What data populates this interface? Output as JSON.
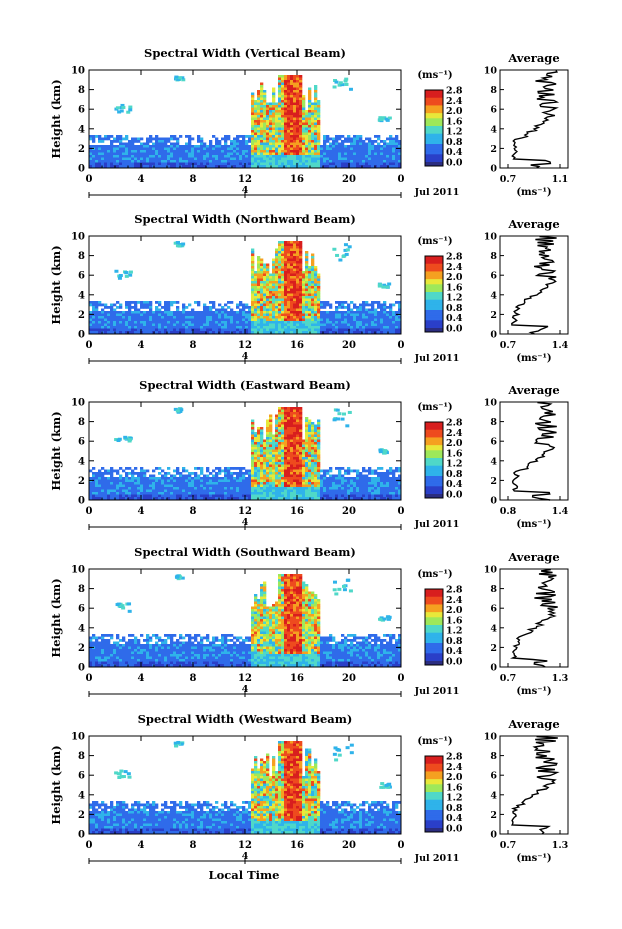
{
  "figure": {
    "x_axis_label": "Local Time",
    "colorbar_unit": "(ms⁻¹)",
    "y_axis_label": "Height (km)",
    "date_label": "Jul 2011",
    "day_label": "4",
    "average_title": "Average",
    "average_unit": "(ms⁻¹)"
  },
  "chart_data": [
    {
      "type": "heatmap",
      "title": "Spectral Width (Vertical Beam)",
      "xlabel": "",
      "ylabel": "Height (km)",
      "x_ticks": [
        "0",
        "4",
        "8",
        "12",
        "16",
        "20",
        "0"
      ],
      "y_ticks": [
        "0",
        "2",
        "4",
        "6",
        "8",
        "10"
      ],
      "xlim": [
        0,
        24
      ],
      "ylim": [
        0,
        10
      ],
      "colorbar_ticks": [
        "0.0",
        "0.4",
        "0.8",
        "1.2",
        "1.6",
        "2.0",
        "2.4",
        "2.8"
      ],
      "colorbar_range": [
        0,
        2.8
      ],
      "average": {
        "type": "line",
        "title": "Average",
        "xlabel": "(ms⁻¹)",
        "xlim": [
          0.7,
          1.1
        ],
        "x_ticks": [
          "0.7",
          "1.1"
        ],
        "ylim": [
          0,
          10
        ],
        "y_ticks": [
          "0",
          "2",
          "4",
          "6",
          "8",
          "10"
        ]
      }
    },
    {
      "type": "heatmap",
      "title": "Spectral Width (Northward Beam)",
      "xlabel": "",
      "ylabel": "Height (km)",
      "x_ticks": [
        "0",
        "4",
        "8",
        "12",
        "16",
        "20",
        "0"
      ],
      "y_ticks": [
        "0",
        "2",
        "4",
        "6",
        "8",
        "10"
      ],
      "xlim": [
        0,
        24
      ],
      "ylim": [
        0,
        10
      ],
      "colorbar_ticks": [
        "0.0",
        "0.4",
        "0.8",
        "1.2",
        "1.6",
        "2.0",
        "2.4",
        "2.8"
      ],
      "colorbar_range": [
        0,
        2.8
      ],
      "average": {
        "type": "line",
        "title": "Average",
        "xlabel": "(ms⁻¹)",
        "xlim": [
          0.7,
          1.4
        ],
        "x_ticks": [
          "0.7",
          "1.4"
        ],
        "ylim": [
          0,
          10
        ],
        "y_ticks": [
          "0",
          "2",
          "4",
          "6",
          "8",
          "10"
        ]
      }
    },
    {
      "type": "heatmap",
      "title": "Spectral Width (Eastward Beam)",
      "xlabel": "",
      "ylabel": "Height (km)",
      "x_ticks": [
        "0",
        "4",
        "8",
        "12",
        "16",
        "20",
        "0"
      ],
      "y_ticks": [
        "0",
        "2",
        "4",
        "6",
        "8",
        "10"
      ],
      "xlim": [
        0,
        24
      ],
      "ylim": [
        0,
        10
      ],
      "colorbar_ticks": [
        "0.0",
        "0.4",
        "0.8",
        "1.2",
        "1.6",
        "2.0",
        "2.4",
        "2.8"
      ],
      "colorbar_range": [
        0,
        2.8
      ],
      "average": {
        "type": "line",
        "title": "Average",
        "xlabel": "(ms⁻¹)",
        "xlim": [
          0.8,
          1.4
        ],
        "x_ticks": [
          "0.8",
          "1.4"
        ],
        "ylim": [
          0,
          10
        ],
        "y_ticks": [
          "0",
          "2",
          "4",
          "6",
          "8",
          "10"
        ]
      }
    },
    {
      "type": "heatmap",
      "title": "Spectral Width (Southward Beam)",
      "xlabel": "",
      "ylabel": "Height (km)",
      "x_ticks": [
        "0",
        "4",
        "8",
        "12",
        "16",
        "20",
        "0"
      ],
      "y_ticks": [
        "0",
        "2",
        "4",
        "6",
        "8",
        "10"
      ],
      "xlim": [
        0,
        24
      ],
      "ylim": [
        0,
        10
      ],
      "colorbar_ticks": [
        "0.0",
        "0.4",
        "0.8",
        "1.2",
        "1.6",
        "2.0",
        "2.4",
        "2.8"
      ],
      "colorbar_range": [
        0,
        2.8
      ],
      "average": {
        "type": "line",
        "title": "Average",
        "xlabel": "(ms⁻¹)",
        "xlim": [
          0.7,
          1.3
        ],
        "x_ticks": [
          "0.7",
          "1.3"
        ],
        "ylim": [
          0,
          10
        ],
        "y_ticks": [
          "0",
          "2",
          "4",
          "6",
          "8",
          "10"
        ]
      }
    },
    {
      "type": "heatmap",
      "title": "Spectral Width (Westward Beam)",
      "xlabel": "Local Time",
      "ylabel": "Height (km)",
      "x_ticks": [
        "0",
        "4",
        "8",
        "12",
        "16",
        "20",
        "0"
      ],
      "y_ticks": [
        "0",
        "2",
        "4",
        "6",
        "8",
        "10"
      ],
      "xlim": [
        0,
        24
      ],
      "ylim": [
        0,
        10
      ],
      "colorbar_ticks": [
        "0.0",
        "0.4",
        "0.8",
        "1.2",
        "1.6",
        "2.0",
        "2.4",
        "2.8"
      ],
      "colorbar_range": [
        0,
        2.8
      ],
      "average": {
        "type": "line",
        "title": "Average",
        "xlabel": "(ms⁻¹)",
        "xlim": [
          0.7,
          1.3
        ],
        "x_ticks": [
          "0.7",
          "1.3"
        ],
        "ylim": [
          0,
          10
        ],
        "y_ticks": [
          "0",
          "2",
          "4",
          "6",
          "8",
          "10"
        ]
      }
    }
  ]
}
